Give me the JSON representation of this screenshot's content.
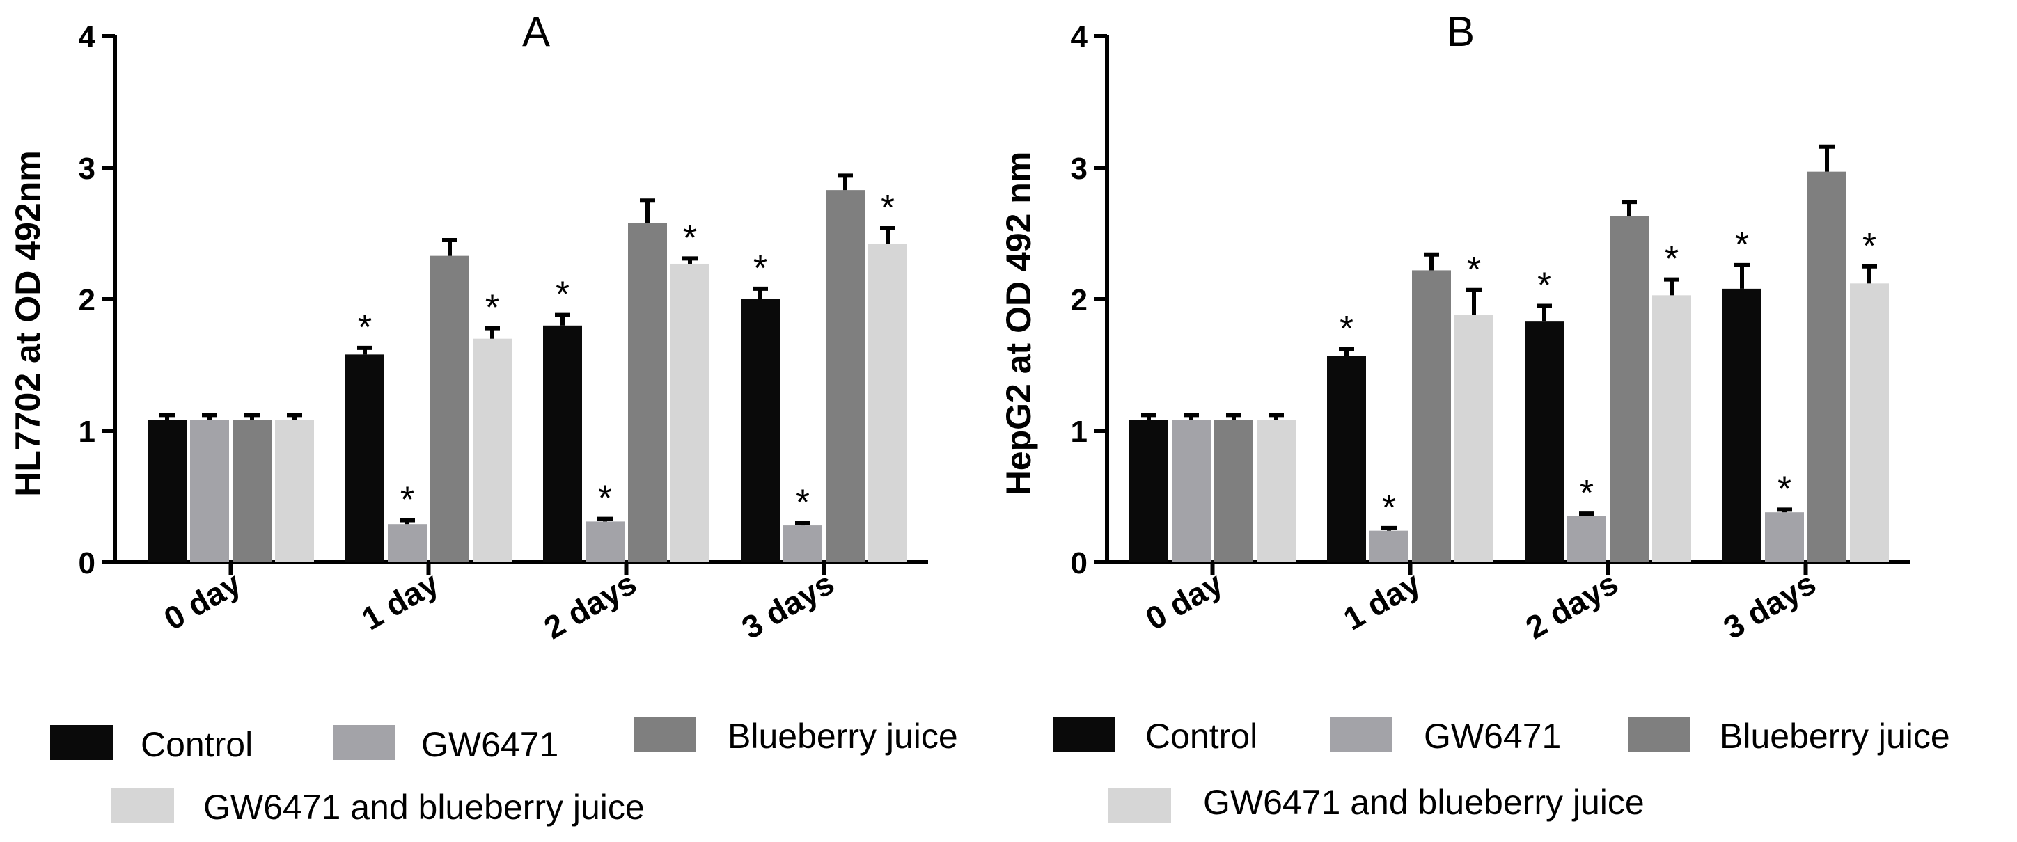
{
  "chart_data": [
    {
      "type": "bar",
      "title": "A",
      "ylabel": "HL7702 at OD 492nm",
      "xlabel": "",
      "ylim": [
        0,
        4
      ],
      "yticks": [
        0,
        1,
        2,
        3,
        4
      ],
      "categories": [
        "0 day",
        "1 day",
        "2 days",
        "3 days"
      ],
      "series": [
        {
          "name": "Control",
          "color": "#0a0a0a",
          "values": [
            1.08,
            1.58,
            1.8,
            2.0
          ],
          "errors": [
            0.04,
            0.05,
            0.08,
            0.08
          ],
          "significant": [
            false,
            true,
            true,
            true
          ]
        },
        {
          "name": "GW6471",
          "color": "#a3a3a8",
          "values": [
            1.08,
            0.29,
            0.31,
            0.28
          ],
          "errors": [
            0.04,
            0.03,
            0.02,
            0.02
          ],
          "significant": [
            false,
            true,
            true,
            true
          ]
        },
        {
          "name": "Blueberry juice",
          "color": "#7f7f7f",
          "values": [
            1.08,
            2.33,
            2.58,
            2.83
          ],
          "errors": [
            0.04,
            0.12,
            0.17,
            0.11
          ],
          "significant": [
            false,
            false,
            false,
            false
          ]
        },
        {
          "name": "GW6471 and blueberry juice",
          "color": "#d6d6d6",
          "values": [
            1.08,
            1.7,
            2.27,
            2.42
          ],
          "errors": [
            0.04,
            0.08,
            0.04,
            0.12
          ],
          "significant": [
            false,
            true,
            true,
            true
          ]
        }
      ],
      "legend_placement": "bottom"
    },
    {
      "type": "bar",
      "title": "B",
      "ylabel": "HepG2 at OD 492 nm",
      "xlabel": "",
      "ylim": [
        0,
        4
      ],
      "yticks": [
        0,
        1,
        2,
        3,
        4
      ],
      "categories": [
        "0 day",
        "1 day",
        "2 days",
        "3 days"
      ],
      "series": [
        {
          "name": "Control",
          "color": "#0a0a0a",
          "values": [
            1.08,
            1.57,
            1.83,
            2.08
          ],
          "errors": [
            0.04,
            0.05,
            0.12,
            0.18
          ],
          "significant": [
            false,
            true,
            true,
            true
          ]
        },
        {
          "name": "GW6471",
          "color": "#a3a3a8",
          "values": [
            1.08,
            0.24,
            0.35,
            0.38
          ],
          "errors": [
            0.04,
            0.02,
            0.02,
            0.02
          ],
          "significant": [
            false,
            true,
            true,
            true
          ]
        },
        {
          "name": "Blueberry juice",
          "color": "#7f7f7f",
          "values": [
            1.08,
            2.22,
            2.63,
            2.97
          ],
          "errors": [
            0.04,
            0.12,
            0.11,
            0.19
          ],
          "significant": [
            false,
            false,
            false,
            false
          ]
        },
        {
          "name": "GW6471 and blueberry juice",
          "color": "#d6d6d6",
          "values": [
            1.08,
            1.88,
            2.03,
            2.12
          ],
          "errors": [
            0.04,
            0.19,
            0.12,
            0.13
          ],
          "significant": [
            false,
            true,
            true,
            true
          ]
        }
      ],
      "legend_placement": "bottom"
    }
  ],
  "significance_marker": "*",
  "legend": {
    "items": [
      "Control",
      "GW6471",
      "Blueberry juice",
      "GW6471 and blueberry juice"
    ]
  }
}
